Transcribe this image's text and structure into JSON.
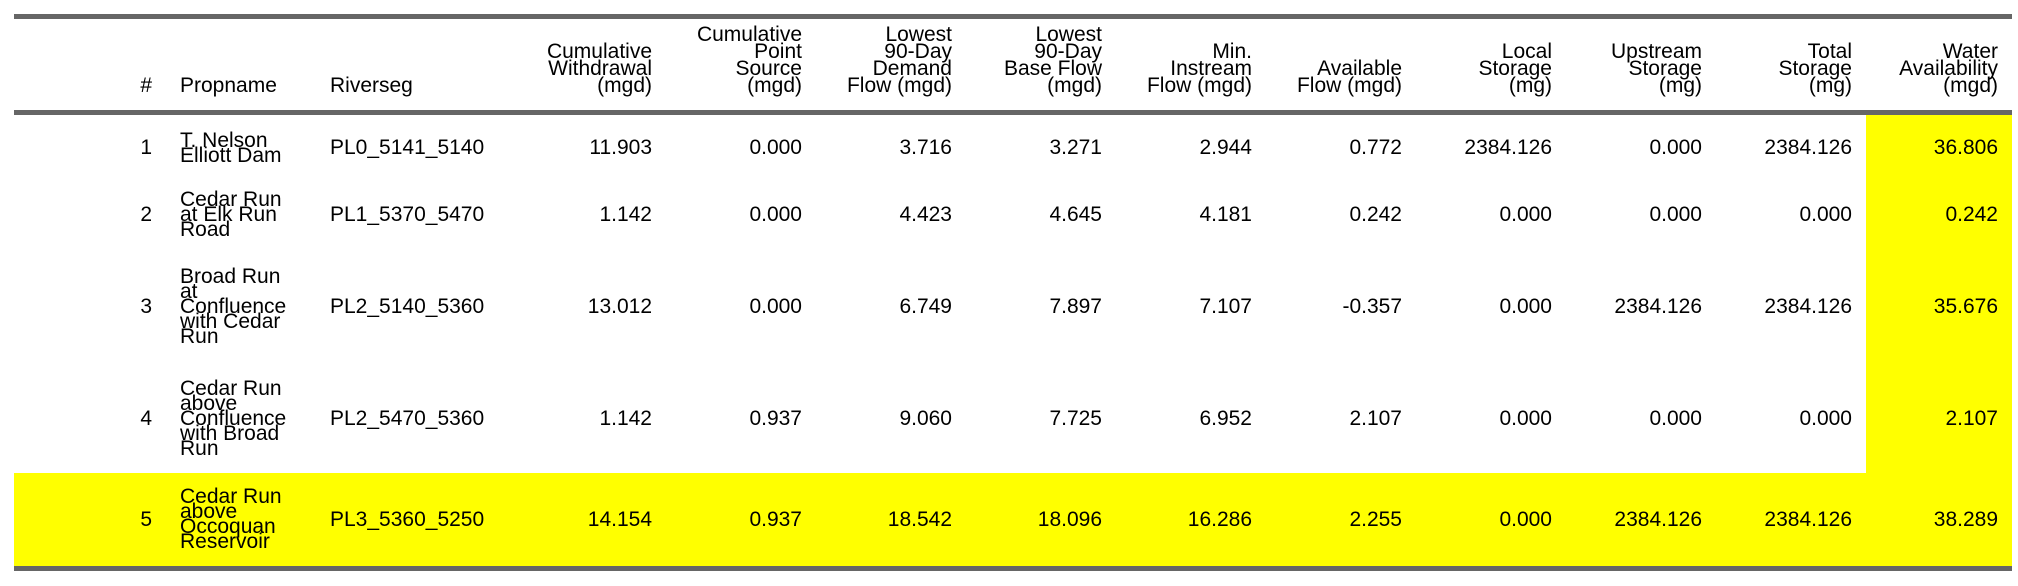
{
  "table": {
    "headers": [
      {
        "key": "num",
        "lines": [
          "#"
        ],
        "align": "r"
      },
      {
        "key": "propname",
        "lines": [
          "Propname"
        ],
        "align": "l"
      },
      {
        "key": "riverseg",
        "lines": [
          "Riverseg"
        ],
        "align": "l"
      },
      {
        "key": "cum_withdrawal",
        "lines": [
          "Cumulative",
          "Withdrawal",
          "(mgd)"
        ],
        "align": "r"
      },
      {
        "key": "cum_point_source",
        "lines": [
          "Cumulative",
          "Point",
          "Source",
          "(mgd)"
        ],
        "align": "r"
      },
      {
        "key": "lowest_demand",
        "lines": [
          "Lowest",
          "90-Day",
          "Demand",
          "Flow (mgd)"
        ],
        "align": "r"
      },
      {
        "key": "lowest_base",
        "lines": [
          "Lowest",
          "90-Day",
          "Base Flow",
          "(mgd)"
        ],
        "align": "r"
      },
      {
        "key": "min_instream",
        "lines": [
          "Min.",
          "Instream",
          "Flow (mgd)"
        ],
        "align": "r"
      },
      {
        "key": "available_flow",
        "lines": [
          "Available",
          "Flow (mgd)"
        ],
        "align": "r"
      },
      {
        "key": "local_storage",
        "lines": [
          "Local",
          "Storage",
          "(mg)"
        ],
        "align": "r"
      },
      {
        "key": "upstream_storage",
        "lines": [
          "Upstream",
          "Storage",
          "(mg)"
        ],
        "align": "r"
      },
      {
        "key": "total_storage",
        "lines": [
          "Total",
          "Storage",
          "(mg)"
        ],
        "align": "r"
      },
      {
        "key": "water_availability",
        "lines": [
          "Water",
          "Availability",
          "(mgd)"
        ],
        "align": "r"
      }
    ],
    "rows": [
      {
        "num": "1",
        "propname": [
          "T. Nelson",
          "Elliott Dam"
        ],
        "riverseg": "PL0_5141_5140",
        "values": [
          "11.903",
          "0.000",
          "3.716",
          "3.271",
          "2.944",
          "0.772",
          "2384.126",
          "0.000",
          "2384.126",
          "36.806"
        ],
        "row_highlight": false
      },
      {
        "num": "2",
        "propname": [
          "Cedar Run",
          "at Elk Run",
          "Road"
        ],
        "riverseg": "PL1_5370_5470",
        "values": [
          "1.142",
          "0.000",
          "4.423",
          "4.645",
          "4.181",
          "0.242",
          "0.000",
          "0.000",
          "0.000",
          "0.242"
        ],
        "row_highlight": false
      },
      {
        "num": "3",
        "propname": [
          "Broad Run",
          "at",
          "Confluence",
          "with Cedar",
          "Run"
        ],
        "riverseg": "PL2_5140_5360",
        "values": [
          "13.012",
          "0.000",
          "6.749",
          "7.897",
          "7.107",
          "-0.357",
          "0.000",
          "2384.126",
          "2384.126",
          "35.676"
        ],
        "row_highlight": false
      },
      {
        "num": "4",
        "propname": [
          "Cedar Run",
          "above",
          "Confluence",
          "with Broad",
          "Run"
        ],
        "riverseg": "PL2_5470_5360",
        "values": [
          "1.142",
          "0.937",
          "9.060",
          "7.725",
          "6.952",
          "2.107",
          "0.000",
          "0.000",
          "0.000",
          "2.107"
        ],
        "row_highlight": false
      },
      {
        "num": "5",
        "propname": [
          "Cedar Run",
          "above",
          "Occoquan",
          "Reservoir"
        ],
        "riverseg": "PL3_5360_5250",
        "values": [
          "14.154",
          "0.937",
          "18.542",
          "18.096",
          "16.286",
          "2.255",
          "0.000",
          "2384.126",
          "2384.126",
          "38.289"
        ],
        "row_highlight": true
      }
    ],
    "highlight_color": "#ffff00",
    "rule_color": "#666666"
  }
}
